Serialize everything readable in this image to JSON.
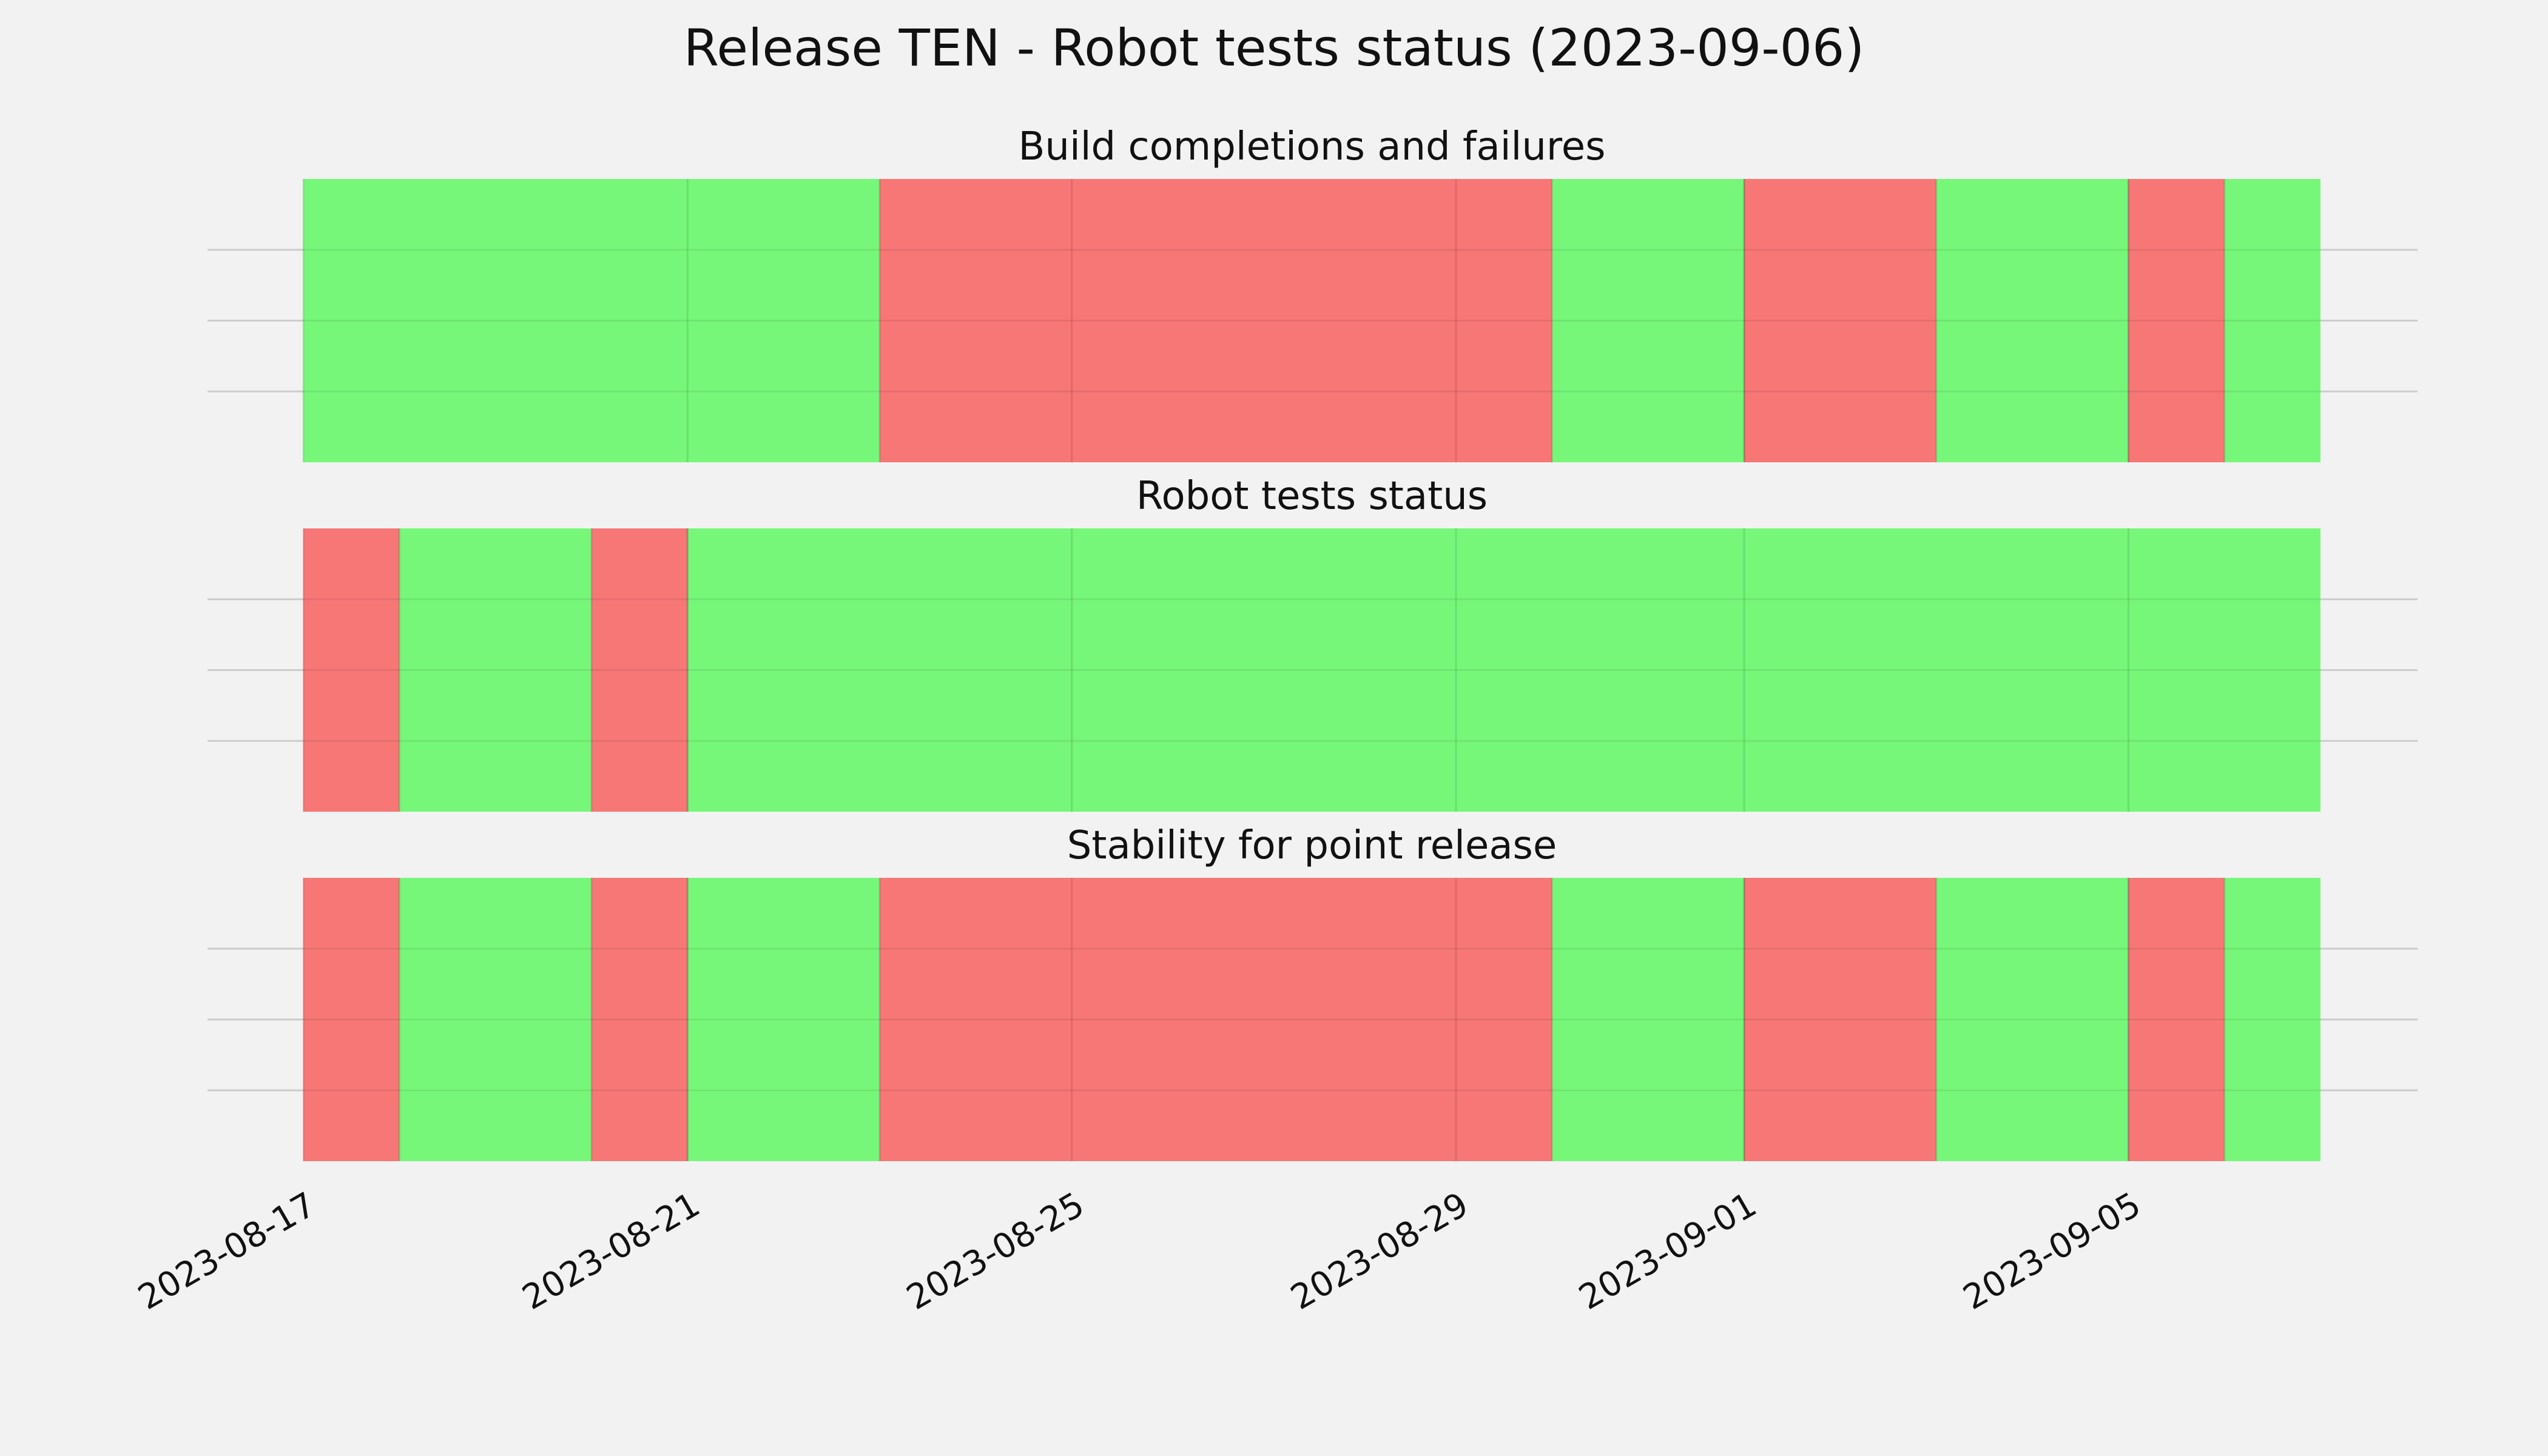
{
  "chart_data": {
    "type": "timeline",
    "title": "Release TEN - Robot tests status (2023-09-06)",
    "x_range": [
      "2023-08-17",
      "2023-09-07"
    ],
    "x_ticks": [
      "2023-08-17",
      "2023-08-21",
      "2023-08-25",
      "2023-08-29",
      "2023-09-01",
      "2023-09-05"
    ],
    "grid": true,
    "colors": {
      "pass": "#77f77a",
      "fail": "#f77777",
      "background": "#f2f2f2",
      "grid": "#cccccc"
    },
    "panels": [
      {
        "title": "Build completions and failures",
        "segments": [
          {
            "start": "2023-08-17",
            "end": "2023-08-23",
            "status": "pass"
          },
          {
            "start": "2023-08-23",
            "end": "2023-08-30",
            "status": "fail"
          },
          {
            "start": "2023-08-30",
            "end": "2023-09-01",
            "status": "pass"
          },
          {
            "start": "2023-09-01",
            "end": "2023-09-03",
            "status": "fail"
          },
          {
            "start": "2023-09-03",
            "end": "2023-09-05",
            "status": "pass"
          },
          {
            "start": "2023-09-05",
            "end": "2023-09-06",
            "status": "fail"
          },
          {
            "start": "2023-09-06",
            "end": "2023-09-07",
            "status": "pass"
          }
        ]
      },
      {
        "title": "Robot tests status",
        "segments": [
          {
            "start": "2023-08-17",
            "end": "2023-08-18",
            "status": "fail"
          },
          {
            "start": "2023-08-18",
            "end": "2023-08-20",
            "status": "pass"
          },
          {
            "start": "2023-08-20",
            "end": "2023-08-21",
            "status": "fail"
          },
          {
            "start": "2023-08-21",
            "end": "2023-09-07",
            "status": "pass"
          }
        ]
      },
      {
        "title": "Stability for point release",
        "segments": [
          {
            "start": "2023-08-17",
            "end": "2023-08-18",
            "status": "fail"
          },
          {
            "start": "2023-08-18",
            "end": "2023-08-20",
            "status": "pass"
          },
          {
            "start": "2023-08-20",
            "end": "2023-08-21",
            "status": "fail"
          },
          {
            "start": "2023-08-21",
            "end": "2023-08-23",
            "status": "pass"
          },
          {
            "start": "2023-08-23",
            "end": "2023-08-30",
            "status": "fail"
          },
          {
            "start": "2023-08-30",
            "end": "2023-09-01",
            "status": "pass"
          },
          {
            "start": "2023-09-01",
            "end": "2023-09-03",
            "status": "fail"
          },
          {
            "start": "2023-09-03",
            "end": "2023-09-05",
            "status": "pass"
          },
          {
            "start": "2023-09-05",
            "end": "2023-09-06",
            "status": "fail"
          },
          {
            "start": "2023-09-06",
            "end": "2023-09-07",
            "status": "pass"
          }
        ]
      }
    ]
  }
}
